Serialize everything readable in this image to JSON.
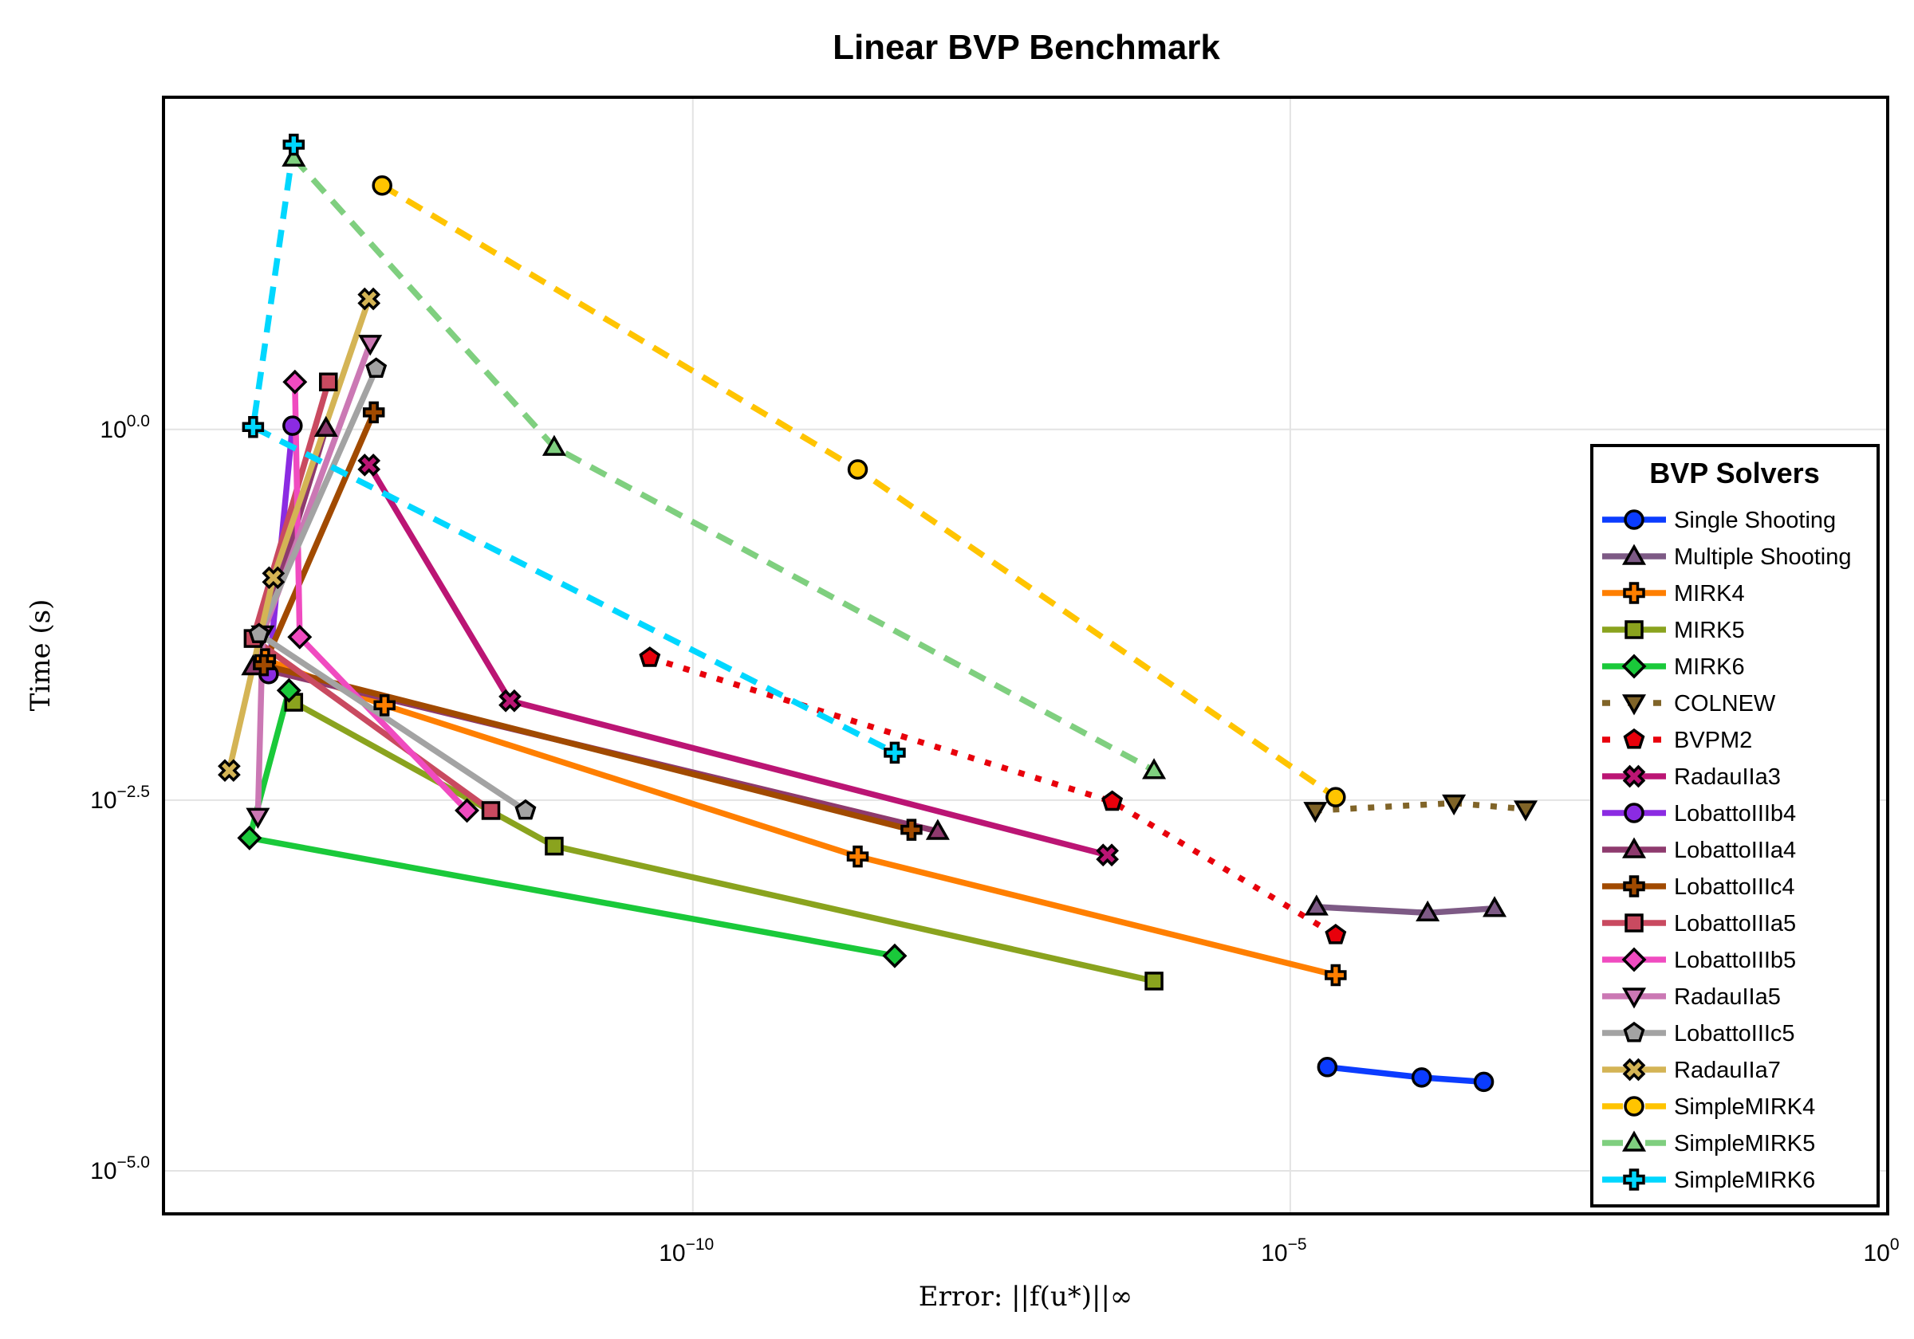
{
  "chart_data": {
    "type": "line",
    "title": "Linear BVP Benchmark",
    "xlabel": "Error: ||f(u*)||∞",
    "ylabel": "Time (s)",
    "xscale": "log",
    "yscale": "log",
    "xlim_log10": [
      -14.43,
      0
    ],
    "ylim_log10": [
      -5.29,
      2.24
    ],
    "grid": true,
    "legend": {
      "title": "BVP Solvers",
      "position": "right"
    },
    "x_ticks": [
      {
        "base": "10",
        "exp": "−10",
        "log10": -10
      },
      {
        "base": "10",
        "exp": "−5",
        "log10": -5
      },
      {
        "base": "10",
        "exp": "0",
        "log10": 0
      }
    ],
    "y_ticks": [
      {
        "base": "10",
        "exp": "0.0",
        "log10": 0
      },
      {
        "base": "10",
        "exp": "−2.5",
        "log10": -2.5
      },
      {
        "base": "10",
        "exp": "−5.0",
        "log10": -5
      }
    ],
    "series": [
      {
        "name": "Single Shooting",
        "color": "#0b3cff",
        "marker": "circle",
        "dash": "solid",
        "points_log10": [
          [
            -4.69,
            -4.3
          ],
          [
            -3.9,
            -4.37
          ],
          [
            -3.38,
            -4.4
          ]
        ]
      },
      {
        "name": "Multiple Shooting",
        "color": "#7d5a85",
        "marker": "triangle-up",
        "dash": "solid",
        "points_log10": [
          [
            -4.78,
            -3.22
          ],
          [
            -3.85,
            -3.26
          ],
          [
            -3.29,
            -3.23
          ]
        ]
      },
      {
        "name": "MIRK4",
        "color": "#ff7f00",
        "marker": "cross",
        "dash": "solid",
        "points_log10": [
          [
            -13.58,
            -1.55
          ],
          [
            -12.58,
            -1.86
          ],
          [
            -8.62,
            -2.88
          ],
          [
            -4.62,
            -3.68
          ]
        ]
      },
      {
        "name": "MIRK5",
        "color": "#8aa31e",
        "marker": "square",
        "dash": "solid",
        "points_log10": [
          [
            -13.34,
            -1.84
          ],
          [
            -11.16,
            -2.81
          ],
          [
            -6.14,
            -3.72
          ]
        ]
      },
      {
        "name": "MIRK6",
        "color": "#1ac93a",
        "marker": "diamond",
        "dash": "solid",
        "points_log10": [
          [
            -13.38,
            -1.76
          ],
          [
            -13.71,
            -2.755
          ],
          [
            -8.31,
            -3.55
          ]
        ]
      },
      {
        "name": "COLNEW",
        "color": "#806428",
        "marker": "triangle-down",
        "dash": "dot",
        "points_log10": [
          [
            -4.79,
            -2.57
          ],
          [
            -3.63,
            -2.52
          ],
          [
            -3.03,
            -2.56
          ]
        ]
      },
      {
        "name": "BVPM2",
        "color": "#e8000b",
        "marker": "pentagon",
        "dash": "dot",
        "points_log10": [
          [
            -10.36,
            -1.54
          ],
          [
            -6.49,
            -2.51
          ],
          [
            -4.62,
            -3.41
          ]
        ]
      },
      {
        "name": "RadauIIa3",
        "color": "#bb1574",
        "marker": "xcross",
        "dash": "solid",
        "points_log10": [
          [
            -12.71,
            -0.24
          ],
          [
            -11.53,
            -1.83
          ],
          [
            -6.53,
            -2.87
          ]
        ]
      },
      {
        "name": "LobattoIIIb4",
        "color": "#8b2be2",
        "marker": "circle",
        "dash": "solid",
        "points_log10": [
          [
            -13.35,
            0.025
          ],
          [
            -13.55,
            -1.65
          ]
        ]
      },
      {
        "name": "LobattoIIIa4",
        "color": "#8e3a6e",
        "marker": "triangle-up",
        "dash": "solid",
        "points_log10": [
          [
            -13.07,
            0.008
          ],
          [
            -13.68,
            -1.6
          ],
          [
            -7.95,
            -2.71
          ]
        ]
      },
      {
        "name": "LobattoIIIc4",
        "color": "#a14a00",
        "marker": "cross",
        "dash": "solid",
        "points_log10": [
          [
            -12.67,
            0.115
          ],
          [
            -13.59,
            -1.59
          ],
          [
            -8.17,
            -2.7
          ]
        ]
      },
      {
        "name": "LobattoIIIa5",
        "color": "#c94a60",
        "marker": "square",
        "dash": "solid",
        "points_log10": [
          [
            -13.05,
            0.32
          ],
          [
            -13.68,
            -1.41
          ],
          [
            -11.69,
            -2.57
          ]
        ]
      },
      {
        "name": "LobattoIIIb5",
        "color": "#f04bc0",
        "marker": "diamond",
        "dash": "solid",
        "points_log10": [
          [
            -13.33,
            0.32
          ],
          [
            -13.29,
            -1.4
          ],
          [
            -11.89,
            -2.57
          ]
        ]
      },
      {
        "name": "RadauIIa5",
        "color": "#cb78b4",
        "marker": "triangle-down",
        "dash": "solid",
        "points_log10": [
          [
            -12.7,
            0.58
          ],
          [
            -13.6,
            -1.38
          ],
          [
            -13.64,
            -2.61
          ]
        ]
      },
      {
        "name": "LobattoIIIc5",
        "color": "#a3a3a3",
        "marker": "pentagon",
        "dash": "solid",
        "points_log10": [
          [
            -12.65,
            0.41
          ],
          [
            -13.63,
            -1.38
          ],
          [
            -11.4,
            -2.57
          ]
        ]
      },
      {
        "name": "RadauIIa7",
        "color": "#d4b455",
        "marker": "xcross",
        "dash": "solid",
        "points_log10": [
          [
            -12.71,
            0.88
          ],
          [
            -13.51,
            -1.0
          ],
          [
            -13.88,
            -2.3
          ]
        ]
      },
      {
        "name": "SimpleMIRK4",
        "color": "#ffc400",
        "marker": "circle",
        "dash": "dash",
        "points_log10": [
          [
            -12.6,
            1.645
          ],
          [
            -8.62,
            -0.27
          ],
          [
            -4.62,
            -2.48
          ]
        ]
      },
      {
        "name": "SimpleMIRK5",
        "color": "#7fcf7f",
        "marker": "triangle-up",
        "dash": "dash",
        "points_log10": [
          [
            -13.34,
            1.83
          ],
          [
            -11.16,
            -0.12
          ],
          [
            -6.14,
            -2.3
          ]
        ]
      },
      {
        "name": "SimpleMIRK6",
        "color": "#00d7ff",
        "marker": "cross",
        "dash": "dash",
        "points_log10": [
          [
            -13.34,
            1.92
          ],
          [
            -13.68,
            0.016
          ],
          [
            -8.31,
            -2.18
          ]
        ]
      }
    ]
  }
}
